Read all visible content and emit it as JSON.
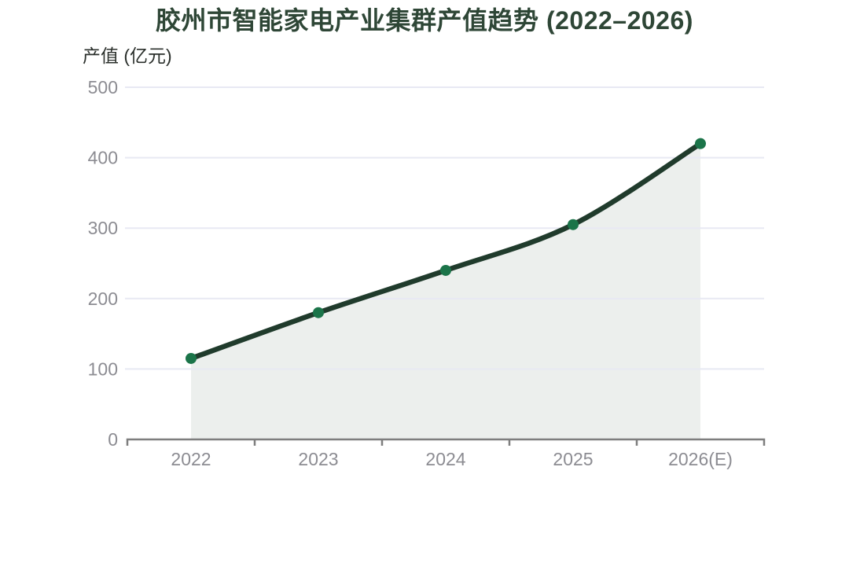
{
  "chart_data": {
    "type": "line",
    "title": "胶州市智能家电产业集群产值趋势 (2022–2026)",
    "ylabel": "产值 (亿元)",
    "xlabel": "",
    "categories": [
      "2022",
      "2023",
      "2024",
      "2025",
      "2026(E)"
    ],
    "series": [
      {
        "name": "产值",
        "values": [
          115,
          180,
          240,
          305,
          420
        ]
      }
    ],
    "ylim": [
      0,
      500
    ],
    "yticks": [
      0,
      100,
      200,
      300,
      400,
      500
    ],
    "grid": "horizontal",
    "legend": "none",
    "area_fill": true,
    "smooth_curve": true,
    "colors": {
      "title_text": "#2e4636",
      "axis_label_text": "#2b302c",
      "tick_text": "#8c8c92",
      "grid": "#e8e9f3",
      "axis": "#7e7e7e",
      "line": "#203b2c",
      "marker": "#1b7449",
      "area": "#ecefed",
      "background": "#ffffff"
    }
  }
}
